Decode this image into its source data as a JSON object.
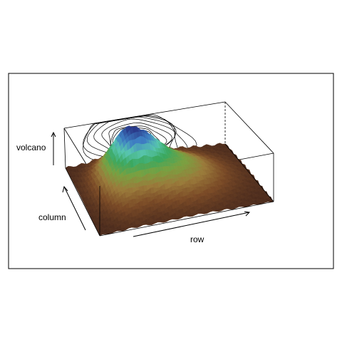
{
  "chart_data": {
    "type": "surface3d",
    "title": "",
    "xlabel": "row",
    "ylabel": "column",
    "zlabel": "volcano",
    "contours_on_top_face": true,
    "box": true,
    "palette": [
      "#4a2a1c",
      "#7a4a26",
      "#9a7a3a",
      "#7aa040",
      "#3aa860",
      "#58c6b0",
      "#3f7fc4",
      "#2a3a8a"
    ],
    "colors": {
      "frame": "#000000",
      "contour": "#000000"
    }
  }
}
